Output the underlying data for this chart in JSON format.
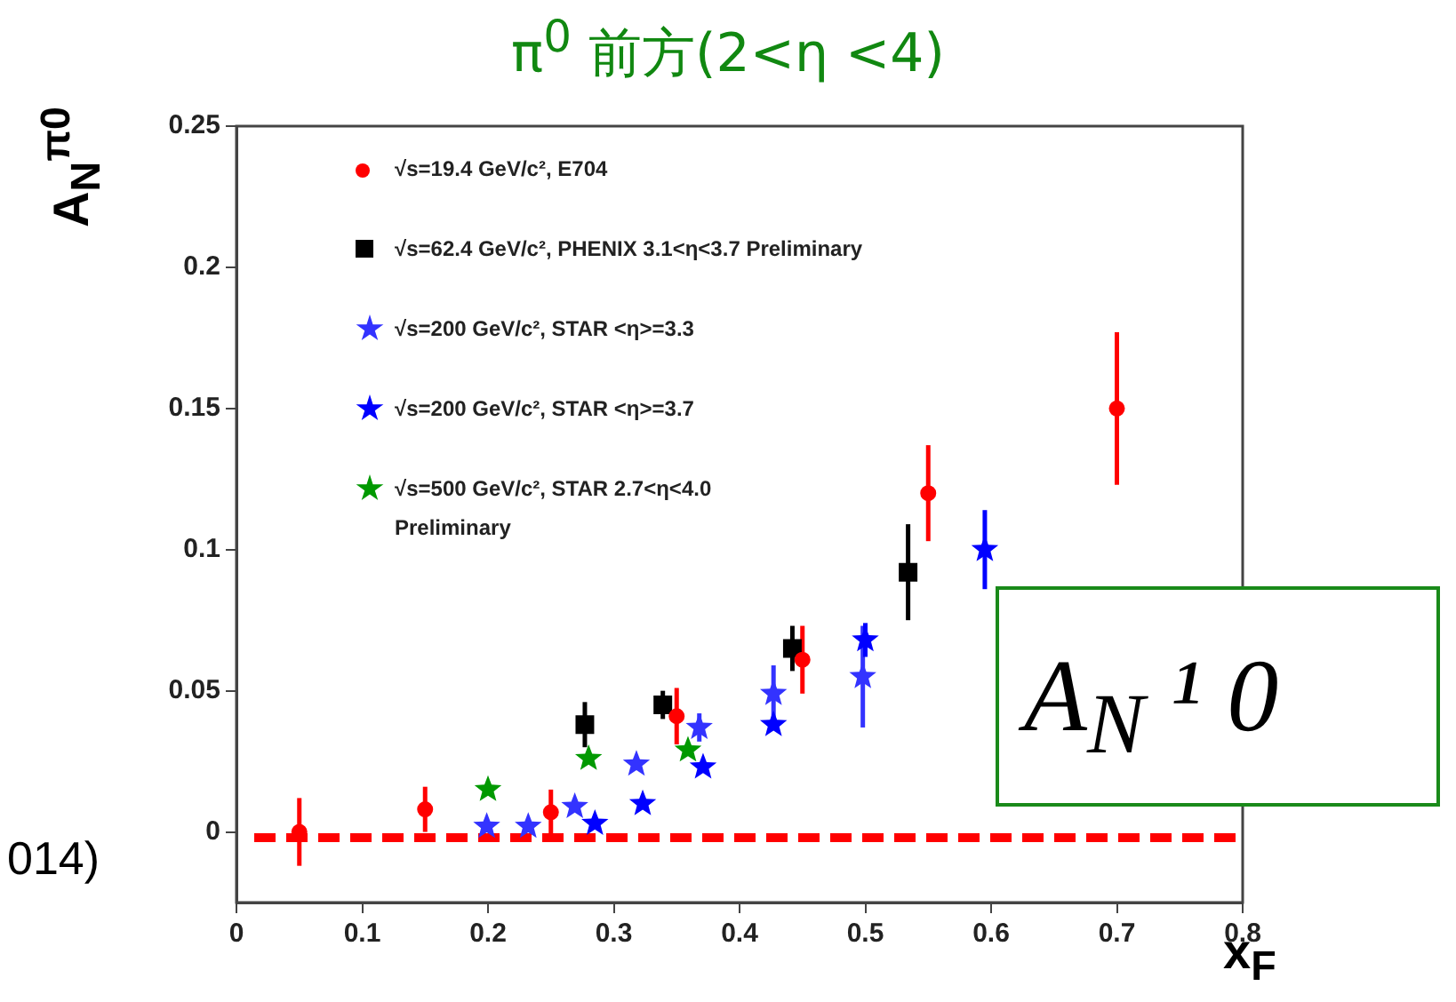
{
  "chart_data": {
    "type": "scatter",
    "title": "π$^{0}$  前方(2<η <4)",
    "xlabel": "x$_{F}$",
    "ylabel": "A$_{N}$$^{π0}$",
    "xlim": [
      0,
      0.8
    ],
    "xticks": [
      0,
      0.1,
      0.2,
      0.3,
      0.4,
      0.5,
      0.6,
      0.7,
      0.8
    ],
    "ylim": [
      -0.025,
      0.25
    ],
    "yticks": [
      0,
      0.05,
      0.1,
      0.15,
      0.2,
      0.25
    ],
    "grid": false,
    "legend": "top left",
    "series": [
      {
        "name": "√s=19.4 GeV/c², E704",
        "color": "#ff0000",
        "marker": "circle",
        "x": [
          0.05,
          0.15,
          0.25,
          0.35,
          0.45,
          0.55,
          0.7
        ],
        "values": [
          0,
          0.008,
          0.007,
          0.041,
          0.061,
          0.12,
          0.15
        ],
        "errors": [
          0.012,
          0.008,
          0.008,
          0.01,
          0.012,
          0.017,
          0.027
        ]
      },
      {
        "name": "√s=62.4 GeV/c², PHENIX 3.1<η<3.7  Preliminary",
        "color": "#000000",
        "marker": "square",
        "x": [
          0.277,
          0.339,
          0.442,
          0.534
        ],
        "values": [
          0.038,
          0.045,
          0.065,
          0.092
        ],
        "errors": [
          0.008,
          0.005,
          0.008,
          0.017
        ]
      },
      {
        "name": "√s=200 GeV/c², STAR <η>=3.3",
        "color": "#3333ff",
        "marker": "star",
        "x": [
          0.199,
          0.232,
          0.269,
          0.318,
          0.368,
          0.427,
          0.498
        ],
        "values": [
          0.002,
          0.002,
          0.009,
          0.024,
          0.037,
          0.049,
          0.055
        ],
        "errors": [
          null,
          null,
          null,
          null,
          0.005,
          0.01,
          0.018
        ]
      },
      {
        "name": "√s=200 GeV/c², STAR <η>=3.7",
        "color": "#0000ff",
        "marker": "star",
        "x": [
          0.285,
          0.323,
          0.371,
          0.427,
          0.5,
          0.595
        ],
        "values": [
          0.003,
          0.01,
          0.023,
          0.038,
          0.068,
          0.1
        ],
        "errors": [
          null,
          null,
          null,
          null,
          0.006,
          0.014
        ]
      },
      {
        "name": "√s=500 GeV/c², STAR 2.7<η<4.0\nPreliminary",
        "color": "#009900",
        "marker": "star",
        "x": [
          0.2,
          0.28,
          0.359
        ],
        "values": [
          0.015,
          0.026,
          0.029
        ]
      }
    ],
    "ref_lines": [
      {
        "axis": "y",
        "value": -0.002,
        "color": "#ff0000",
        "line_style": "dashed"
      }
    ],
    "annotations": [
      "014)",
      "A$_{N}$ ¹ 0"
    ]
  }
}
